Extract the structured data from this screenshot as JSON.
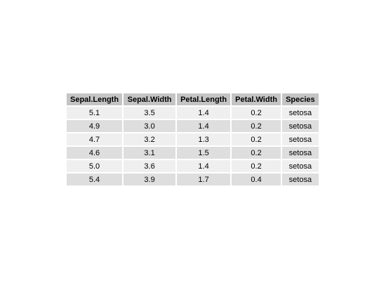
{
  "chart_data": {
    "type": "table",
    "columns": [
      "Sepal.Length",
      "Sepal.Width",
      "Petal.Length",
      "Petal.Width",
      "Species"
    ],
    "rows": [
      [
        "5.1",
        "3.5",
        "1.4",
        "0.2",
        "setosa"
      ],
      [
        "4.9",
        "3.0",
        "1.4",
        "0.2",
        "setosa"
      ],
      [
        "4.7",
        "3.2",
        "1.3",
        "0.2",
        "setosa"
      ],
      [
        "4.6",
        "3.1",
        "1.5",
        "0.2",
        "setosa"
      ],
      [
        "5.0",
        "3.6",
        "1.4",
        "0.2",
        "setosa"
      ],
      [
        "5.4",
        "3.9",
        "1.7",
        "0.4",
        "setosa"
      ]
    ],
    "colors": {
      "header_bg": "#c4c4c4",
      "row_odd_bg": "#efefef",
      "row_even_bg": "#dedede"
    }
  }
}
